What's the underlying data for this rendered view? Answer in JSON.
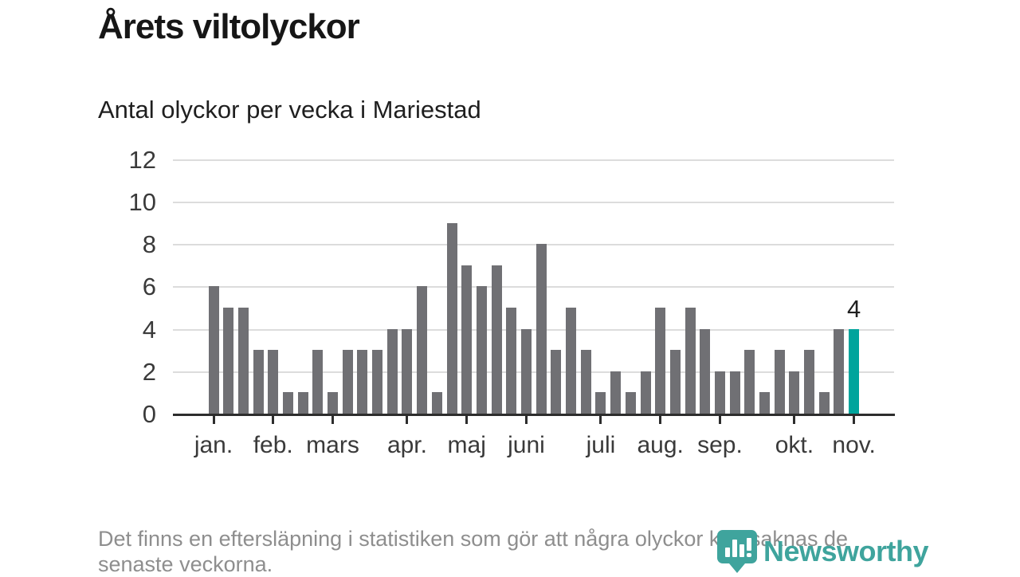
{
  "header": {
    "title": "Årets viltolyckor",
    "subtitle": "Antal olyckor per vecka i Mariestad"
  },
  "chart_data": {
    "type": "bar",
    "title": "Årets viltolyckor",
    "subtitle": "Antal olyckor per vecka i Mariestad",
    "xlabel": "",
    "ylabel": "",
    "ylim": [
      0,
      12
    ],
    "y_ticks": [
      0,
      2,
      4,
      6,
      8,
      10,
      12
    ],
    "grid": true,
    "legend": "none",
    "categories_note": "one bar per week, jan-nov",
    "values": [
      6,
      5,
      5,
      3,
      3,
      1,
      1,
      3,
      1,
      3,
      3,
      3,
      4,
      4,
      6,
      1,
      9,
      7,
      6,
      7,
      5,
      4,
      8,
      3,
      5,
      3,
      1,
      2,
      1,
      2,
      5,
      3,
      5,
      4,
      2,
      2,
      3,
      1,
      3,
      2,
      3,
      1,
      4,
      4
    ],
    "highlight_index": 43,
    "highlight_value_label": "4",
    "x_tick_labels": [
      "jan.",
      "feb.",
      "mars",
      "apr.",
      "maj",
      "juni",
      "juli",
      "aug.",
      "sep.",
      "okt.",
      "nov."
    ],
    "x_tick_bar_indices": [
      0,
      4,
      8,
      13,
      17,
      21,
      26,
      30,
      34,
      39,
      43
    ],
    "bar_color": "#707074",
    "highlight_color": "#00a49c",
    "grid_color": "#dcdcdc",
    "axis_color": "#2d2d2d"
  },
  "footer": {
    "note_line1": "Det finns en eftersläpning i statistiken som gör att några olyckor kan saknas de",
    "note_line2": "senaste veckorna."
  },
  "logo": {
    "name": "Newsworthy",
    "color": "#3fa49d"
  }
}
